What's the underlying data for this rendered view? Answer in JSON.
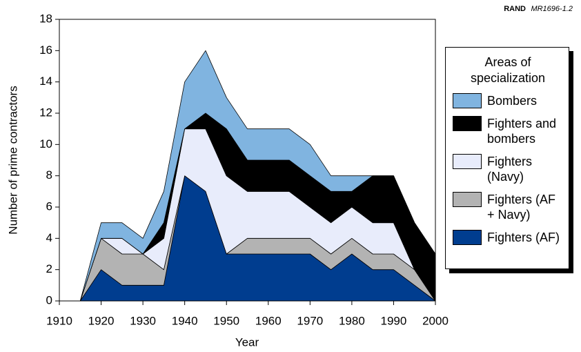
{
  "chart_data": {
    "type": "stacked_area",
    "source_org": "RAND",
    "source_id": "MR1696-1.2",
    "xlabel": "Year",
    "ylabel": "Number of prime contractors",
    "legend_title": "Areas of specialization",
    "x": [
      1910,
      1915,
      1920,
      1925,
      1930,
      1935,
      1940,
      1945,
      1950,
      1955,
      1960,
      1965,
      1970,
      1975,
      1980,
      1985,
      1990,
      1995,
      2000
    ],
    "series": [
      {
        "name": "Fighters (AF)",
        "color": "#003d8f",
        "values": [
          0,
          0,
          2,
          1,
          1,
          1,
          8,
          7,
          3,
          3,
          3,
          3,
          3,
          2,
          3,
          2,
          2,
          1,
          0
        ]
      },
      {
        "name": "Fighters (AF + Navy)",
        "color": "#b3b3b3",
        "values": [
          0,
          0,
          2,
          2,
          2,
          1,
          0,
          0,
          0,
          1,
          1,
          1,
          1,
          1,
          1,
          1,
          1,
          1,
          0
        ]
      },
      {
        "name": "Fighters (Navy)",
        "color": "#e8ecfb",
        "values": [
          0,
          0,
          0,
          1,
          0,
          2,
          3,
          4,
          5,
          3,
          3,
          3,
          2,
          2,
          2,
          2,
          2,
          0,
          0
        ]
      },
      {
        "name": "Fighters and bombers",
        "color": "#000000",
        "values": [
          0,
          0,
          0,
          0,
          0,
          1,
          0,
          1,
          3,
          2,
          2,
          2,
          2,
          2,
          1,
          3,
          3,
          3,
          3
        ]
      },
      {
        "name": "Bombers",
        "color": "#80b4e0",
        "values": [
          0,
          0,
          1,
          1,
          1,
          2,
          3,
          4,
          2,
          2,
          2,
          2,
          2,
          1,
          1,
          0,
          0,
          0,
          0
        ]
      }
    ],
    "xlim": [
      1910,
      2000
    ],
    "xticks": [
      1910,
      1920,
      1930,
      1940,
      1950,
      1960,
      1970,
      1980,
      1990,
      2000
    ],
    "ylim": [
      0,
      18
    ],
    "yticks": [
      0,
      2,
      4,
      6,
      8,
      10,
      12,
      14,
      16,
      18
    ],
    "grid": false,
    "legend_position": "right"
  }
}
